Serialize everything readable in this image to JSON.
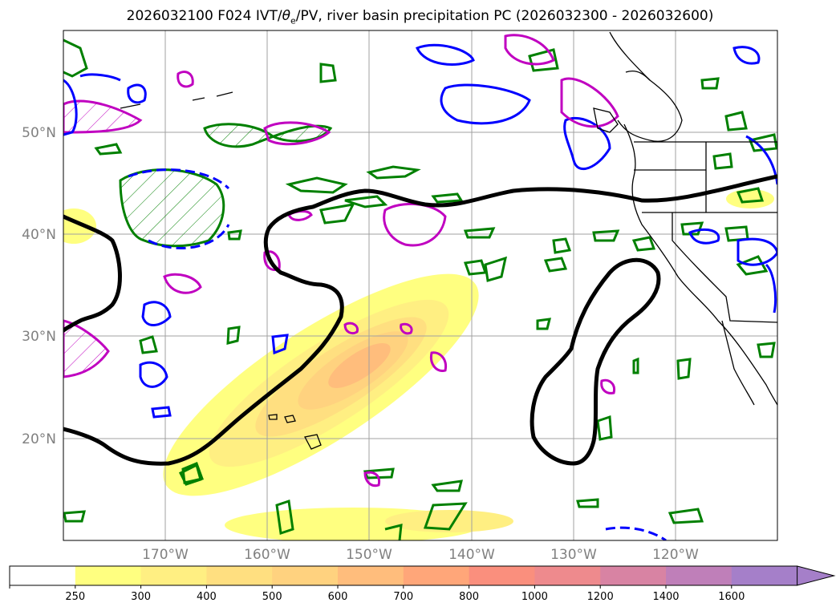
{
  "title": "2026032100 F024 IVT/θe/PV, river basin precipitation PC (2026032300 - 2026032600)",
  "title_parts": {
    "prefix": "2026032100 F024 IVT/",
    "theta": "θ",
    "sub": "e",
    "suffix": "/PV, river basin precipitation PC (2026032300 - 2026032600)"
  },
  "map": {
    "lon_range": [
      -180,
      -110
    ],
    "lat_range": [
      10,
      60
    ],
    "lat_ticks": [
      {
        "lat": 50,
        "label": "50°N"
      },
      {
        "lat": 40,
        "label": "40°N"
      },
      {
        "lat": 30,
        "label": "30°N"
      },
      {
        "lat": 20,
        "label": "20°N"
      }
    ],
    "lon_ticks": [
      {
        "lon": -170,
        "label": "170°W"
      },
      {
        "lon": -160,
        "label": "160°W"
      },
      {
        "lon": -150,
        "label": "150°W"
      },
      {
        "lon": -140,
        "label": "140°W"
      },
      {
        "lon": -130,
        "label": "130°W"
      },
      {
        "lon": -120,
        "label": "120°W"
      }
    ],
    "gridlines": true,
    "colors": {
      "theta_contour": "#000000",
      "pv_contour": "#008000",
      "pv_negative": "#0000ff",
      "precip_contour": "#c000c0",
      "gridline": "#a0a0a0",
      "coast": "#000000"
    }
  },
  "colorbar": {
    "levels": [
      "250",
      "300",
      "400",
      "500",
      "600",
      "700",
      "800",
      "1000",
      "1200",
      "1400",
      "1600"
    ],
    "colors": [
      "#ffffff",
      "#ffff80",
      "#ffef82",
      "#ffdf80",
      "#ffd27f",
      "#ffbd7c",
      "#ffa679",
      "#fa8f7d",
      "#ee8a8d",
      "#d883a3",
      "#bf7fb9",
      "#a57fc9"
    ],
    "extend": "max"
  }
}
